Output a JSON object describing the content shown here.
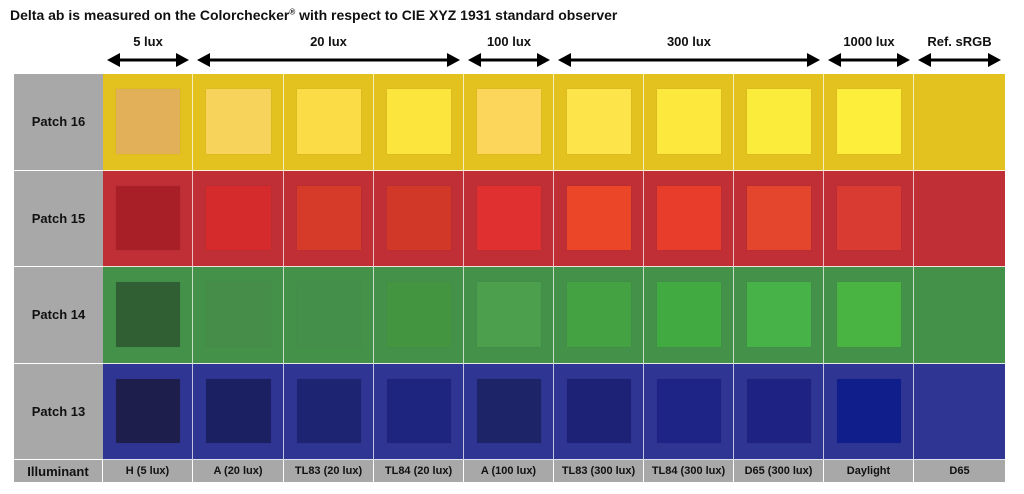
{
  "title": {
    "prefix": "Delta ab is measured on the Colorchecker",
    "registered": "®",
    "suffix": " with respect to CIE XYZ 1931 standard observer"
  },
  "lux_groups": [
    {
      "label": "5 lux",
      "start_col": 0,
      "span": 1
    },
    {
      "label": "20 lux",
      "start_col": 1,
      "span": 3
    },
    {
      "label": "100 lux",
      "start_col": 4,
      "span": 1
    },
    {
      "label": "300 lux",
      "start_col": 5,
      "span": 3
    },
    {
      "label": "1000 lux",
      "start_col": 8,
      "span": 1
    },
    {
      "label": "Ref. sRGB",
      "start_col": 9,
      "span": 1
    }
  ],
  "illuminant_header": "Illuminant",
  "illuminants": [
    "H (5 lux)",
    "A (20 lux)",
    "TL83 (20 lux)",
    "TL84 (20 lux)",
    "A (100 lux)",
    "TL83 (300 lux)",
    "TL84 (300 lux)",
    "D65 (300 lux)",
    "Daylight",
    "D65"
  ],
  "patches": [
    {
      "label": "Patch 16",
      "background": "#e3c11f",
      "swatches": [
        "#e3b05a",
        "#f7d35c",
        "#fbdc46",
        "#fce53d",
        "#fbd65a",
        "#fde44a",
        "#fde93d",
        "#fbeb3a",
        "#fcee3b",
        null
      ]
    },
    {
      "label": "Patch 15",
      "background": "#bf2f35",
      "swatches": [
        "#a91f27",
        "#d52b2c",
        "#d63a28",
        "#d23828",
        "#e0302f",
        "#ec4628",
        "#e83d2a",
        "#e4452d",
        "#d93a32",
        null
      ]
    },
    {
      "label": "Patch 14",
      "background": "#44924a",
      "swatches": [
        "#2f5f32",
        "#478d4a",
        "#44904a",
        "#43963f",
        "#4b9f4d",
        "#44a242",
        "#41aa40",
        "#46b247",
        "#4ab442",
        null
      ]
    },
    {
      "label": "Patch 13",
      "background": "#2f3592",
      "swatches": [
        "#1d1e4c",
        "#1b2063",
        "#1d2471",
        "#1e257f",
        "#1e2468",
        "#1e2276",
        "#1e2486",
        "#1e2283",
        "#101e8c",
        null
      ]
    }
  ]
}
